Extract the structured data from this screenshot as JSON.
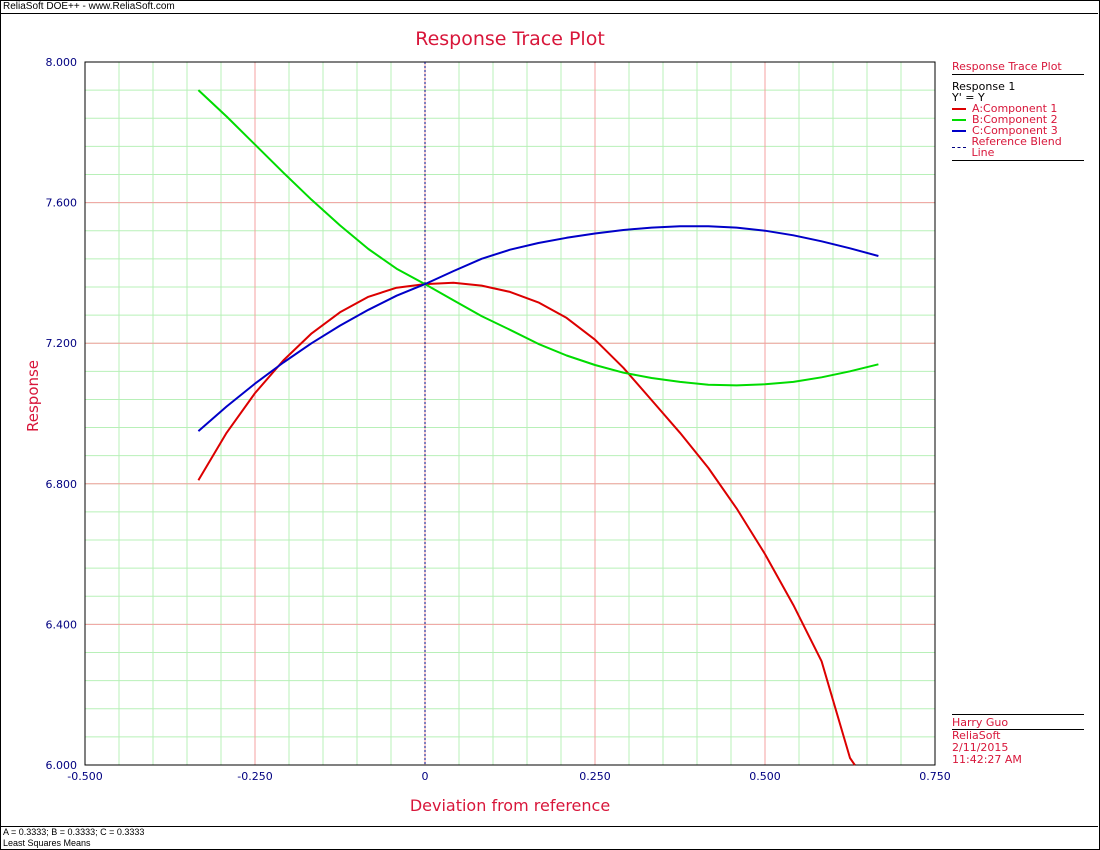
{
  "window": {
    "title": "ReliaSoft DOE++ - www.ReliaSoft.com"
  },
  "footer": {
    "line1": "A = 0.3333; B = 0.3333; C = 0.3333",
    "line2": "Least Squares Means"
  },
  "legend": {
    "title": "Response Trace Plot",
    "response": "Response 1",
    "transform": "Y' = Y",
    "items": [
      {
        "label": "A:Component 1",
        "color": "#dc0000"
      },
      {
        "label": "B:Component 2",
        "color": "#00dc00"
      },
      {
        "label": "C:Component 3",
        "color": "#0000c8"
      },
      {
        "label": "Reference Blend Line",
        "color": "#000080"
      }
    ]
  },
  "info": {
    "user": "Harry Guo",
    "company": "ReliaSoft",
    "date": "2/11/2015",
    "time": "11:42:27 AM"
  },
  "chart_data": {
    "type": "line",
    "title": "Response Trace Plot",
    "xlabel": "Deviation from reference",
    "ylabel": "Response",
    "xlim": [
      -0.5,
      0.75
    ],
    "ylim": [
      6.0,
      8.0
    ],
    "xticks": [
      "-0.500",
      "-0.250",
      "0",
      "0.250",
      "0.500",
      "0.750"
    ],
    "yticks": [
      "6.000",
      "6.400",
      "6.800",
      "7.200",
      "7.600",
      "8.000"
    ],
    "grid": true,
    "legend_position": "right",
    "reference_line_x": 0,
    "series": [
      {
        "name": "A:Component 1",
        "color": "#dc0000",
        "points": [
          [
            -0.3333,
            6.81
          ],
          [
            -0.2917,
            6.945
          ],
          [
            -0.25,
            7.058
          ],
          [
            -0.2083,
            7.151
          ],
          [
            -0.1667,
            7.228
          ],
          [
            -0.125,
            7.288
          ],
          [
            -0.0833,
            7.332
          ],
          [
            -0.0417,
            7.358
          ],
          [
            0.0,
            7.368
          ],
          [
            0.0417,
            7.372
          ],
          [
            0.0833,
            7.364
          ],
          [
            0.125,
            7.346
          ],
          [
            0.1667,
            7.316
          ],
          [
            0.2083,
            7.272
          ],
          [
            0.25,
            7.21
          ],
          [
            0.2917,
            7.13
          ],
          [
            0.3333,
            7.038
          ],
          [
            0.375,
            6.945
          ],
          [
            0.4167,
            6.845
          ],
          [
            0.4583,
            6.73
          ],
          [
            0.5,
            6.6
          ],
          [
            0.5417,
            6.455
          ],
          [
            0.5833,
            6.295
          ],
          [
            0.625,
            6.02
          ],
          [
            0.632,
            6.0
          ]
        ]
      },
      {
        "name": "B:Component 2",
        "color": "#00dc00",
        "points": [
          [
            -0.3333,
            7.92
          ],
          [
            -0.2917,
            7.845
          ],
          [
            -0.25,
            7.765
          ],
          [
            -0.2083,
            7.685
          ],
          [
            -0.1667,
            7.608
          ],
          [
            -0.125,
            7.535
          ],
          [
            -0.0833,
            7.468
          ],
          [
            -0.0417,
            7.412
          ],
          [
            0.0,
            7.368
          ],
          [
            0.0417,
            7.322
          ],
          [
            0.0833,
            7.277
          ],
          [
            0.125,
            7.238
          ],
          [
            0.1667,
            7.198
          ],
          [
            0.2083,
            7.165
          ],
          [
            0.25,
            7.138
          ],
          [
            0.2917,
            7.116
          ],
          [
            0.3333,
            7.101
          ],
          [
            0.375,
            7.09
          ],
          [
            0.4167,
            7.082
          ],
          [
            0.4583,
            7.08
          ],
          [
            0.5,
            7.083
          ],
          [
            0.5417,
            7.09
          ],
          [
            0.5833,
            7.103
          ],
          [
            0.625,
            7.12
          ],
          [
            0.6667,
            7.14
          ]
        ]
      },
      {
        "name": "C:Component 3",
        "color": "#0000c8",
        "points": [
          [
            -0.3333,
            6.95
          ],
          [
            -0.2917,
            7.02
          ],
          [
            -0.25,
            7.085
          ],
          [
            -0.2083,
            7.145
          ],
          [
            -0.1667,
            7.2
          ],
          [
            -0.125,
            7.25
          ],
          [
            -0.0833,
            7.295
          ],
          [
            -0.0417,
            7.335
          ],
          [
            0.0,
            7.368
          ],
          [
            0.0417,
            7.405
          ],
          [
            0.0833,
            7.44
          ],
          [
            0.125,
            7.466
          ],
          [
            0.1667,
            7.485
          ],
          [
            0.2083,
            7.5
          ],
          [
            0.25,
            7.512
          ],
          [
            0.2917,
            7.522
          ],
          [
            0.3333,
            7.529
          ],
          [
            0.375,
            7.533
          ],
          [
            0.4167,
            7.533
          ],
          [
            0.4583,
            7.529
          ],
          [
            0.5,
            7.52
          ],
          [
            0.5417,
            7.507
          ],
          [
            0.5833,
            7.49
          ],
          [
            0.625,
            7.47
          ],
          [
            0.6667,
            7.448
          ]
        ]
      }
    ]
  }
}
